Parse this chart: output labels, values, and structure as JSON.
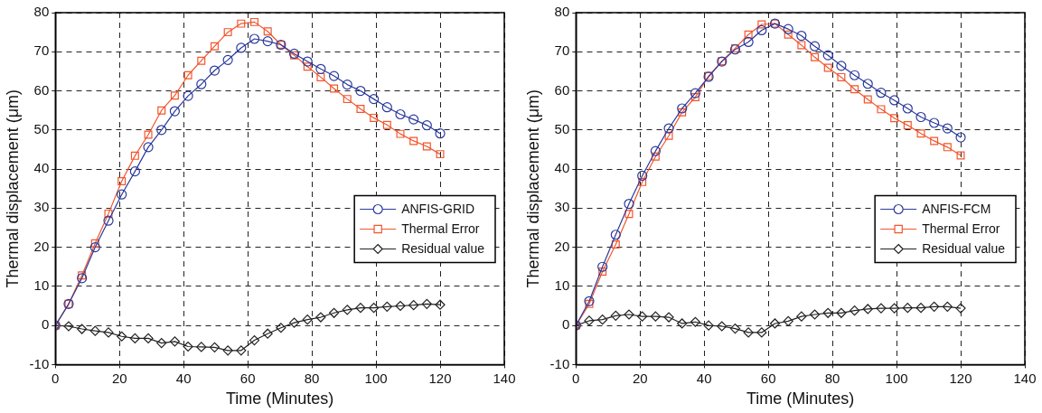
{
  "chart_data": [
    {
      "type": "line",
      "xlabel": "Time (Minutes)",
      "ylabel": "Thermal displacement (μm)",
      "xlim": [
        0,
        140
      ],
      "xticks": [
        0,
        20,
        40,
        60,
        80,
        100,
        120,
        140
      ],
      "ylim": [
        -10,
        80
      ],
      "yticks": [
        -10,
        0,
        10,
        20,
        30,
        40,
        50,
        60,
        70,
        80
      ],
      "grid": true,
      "legend": "right",
      "line_style": "solid",
      "x": [
        0,
        4.14,
        8.28,
        12.41,
        16.55,
        20.69,
        24.83,
        28.97,
        33.1,
        37.24,
        41.38,
        45.52,
        49.66,
        53.79,
        57.93,
        62.07,
        66.21,
        70.34,
        74.48,
        78.62,
        82.76,
        86.9,
        91.03,
        95.17,
        99.31,
        103.45,
        107.59,
        111.72,
        115.86,
        120
      ],
      "series": [
        {
          "name": "ANFIS-GRID",
          "color": "#2b3a9c",
          "marker": "circle",
          "values": [
            0,
            5.5,
            12.1,
            20,
            26.8,
            33.5,
            39.4,
            45.6,
            50,
            54.8,
            58.7,
            61.7,
            65.2,
            67.9,
            71,
            73.3,
            72.7,
            71.8,
            69.5,
            67.5,
            65.6,
            63.8,
            61.6,
            60,
            57.9,
            55.8,
            54,
            52.7,
            51.2,
            49.1
          ]
        },
        {
          "name": "Thermal Error",
          "color": "#f2552c",
          "marker": "square",
          "values": [
            0,
            5.5,
            12.8,
            21,
            28.6,
            36.9,
            43.4,
            48.8,
            55,
            58.8,
            64,
            67.7,
            71.4,
            75,
            77.2,
            77.6,
            75.2,
            71.8,
            69.1,
            66.2,
            63.5,
            60.6,
            57.9,
            55.4,
            53.1,
            51.3,
            49,
            47.2,
            45.8,
            43.8
          ]
        },
        {
          "name": "Residual value",
          "color": "#222222",
          "marker": "diamond",
          "values": [
            0,
            -0.2,
            -0.9,
            -1.4,
            -1.8,
            -2.8,
            -3.3,
            -3.3,
            -4.5,
            -4.1,
            -5.4,
            -5.5,
            -5.6,
            -6.4,
            -6.4,
            -3.8,
            -2.1,
            -0.6,
            0.7,
            1.5,
            2.1,
            3.2,
            4,
            4.5,
            4.5,
            4.8,
            5,
            5.2,
            5.5,
            5.3
          ]
        }
      ]
    },
    {
      "type": "line",
      "xlabel": "Time (Minutes)",
      "ylabel": "Thermal displacement (μm)",
      "xlim": [
        0,
        140
      ],
      "xticks": [
        0,
        20,
        40,
        60,
        80,
        100,
        120,
        140
      ],
      "ylim": [
        -10,
        80
      ],
      "yticks": [
        -10,
        0,
        10,
        20,
        30,
        40,
        50,
        60,
        70,
        80
      ],
      "grid": true,
      "legend": "right",
      "line_style": "solid",
      "x": [
        0,
        4.14,
        8.28,
        12.41,
        16.55,
        20.69,
        24.83,
        28.97,
        33.1,
        37.24,
        41.38,
        45.52,
        49.66,
        53.79,
        57.93,
        62.07,
        66.21,
        70.34,
        74.48,
        78.62,
        82.76,
        86.9,
        91.03,
        95.17,
        99.31,
        103.45,
        107.59,
        111.72,
        115.86,
        120
      ],
      "series": [
        {
          "name": "ANFIS-FCM",
          "color": "#2b3a9c",
          "marker": "circle",
          "values": [
            0,
            6.2,
            15,
            23.2,
            31.1,
            38.3,
            44.6,
            50.4,
            55.5,
            59.4,
            63.6,
            67.5,
            70.6,
            72.5,
            75.5,
            77.2,
            75.8,
            74.1,
            71.4,
            69.1,
            66.4,
            64,
            61.8,
            59.5,
            57.6,
            55.5,
            53.3,
            51.8,
            50.4,
            48.1
          ]
        },
        {
          "name": "Thermal Error",
          "color": "#f2552c",
          "marker": "square",
          "values": [
            0,
            5.5,
            13.8,
            20.7,
            28.5,
            36.7,
            43.2,
            48.5,
            54.5,
            58.4,
            63.8,
            67.6,
            70.9,
            74.4,
            77,
            77.2,
            74.4,
            71.7,
            68.6,
            65.9,
            63.5,
            60.4,
            57.8,
            55.3,
            53,
            51.2,
            49.1,
            47.2,
            45.6,
            43.5
          ]
        },
        {
          "name": "Residual value",
          "color": "#222222",
          "marker": "diamond",
          "values": [
            0,
            1.2,
            1.5,
            2.5,
            2.8,
            2.3,
            2.3,
            2.1,
            0.5,
            0.9,
            0,
            -0.2,
            -0.8,
            -1.8,
            -1.8,
            0.5,
            1.1,
            2.3,
            2.8,
            3.2,
            3.2,
            3.8,
            4.2,
            4.4,
            4.4,
            4.5,
            4.5,
            4.8,
            4.8,
            4.4
          ]
        }
      ]
    }
  ]
}
